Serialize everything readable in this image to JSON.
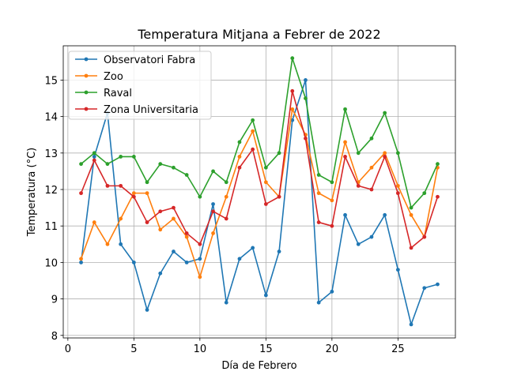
{
  "chart_data": {
    "type": "line",
    "title": "Temperatura Mitjana a Febrer de 2022",
    "xlabel": "Día de Febrero",
    "ylabel": "Temperatura (°C)",
    "xlim": [
      -0.35,
      29.35
    ],
    "ylim": [
      7.93,
      15.94
    ],
    "xticks": [
      0,
      5,
      10,
      15,
      20,
      25
    ],
    "yticks": [
      8,
      9,
      10,
      11,
      12,
      13,
      14,
      15
    ],
    "grid": true,
    "legend_position": "top-left",
    "x": [
      1,
      2,
      3,
      4,
      5,
      6,
      7,
      8,
      9,
      10,
      11,
      12,
      13,
      14,
      15,
      16,
      17,
      18,
      19,
      20,
      21,
      22,
      23,
      24,
      25,
      26,
      27,
      28
    ],
    "series": [
      {
        "name": "Observatori Fabra",
        "color": "#1f77b4",
        "values": [
          10.0,
          12.9,
          14.1,
          10.5,
          10.0,
          8.7,
          9.7,
          10.3,
          10.0,
          10.1,
          11.6,
          8.9,
          10.1,
          10.4,
          9.1,
          10.3,
          13.9,
          15.0,
          8.9,
          9.2,
          11.3,
          10.5,
          10.7,
          11.3,
          9.8,
          8.3,
          9.3,
          9.4
        ]
      },
      {
        "name": "Zoo",
        "color": "#ff7f0e",
        "values": [
          10.1,
          11.1,
          10.5,
          11.2,
          11.9,
          11.9,
          10.9,
          11.2,
          10.7,
          9.6,
          10.8,
          11.8,
          12.9,
          13.6,
          12.2,
          11.8,
          14.2,
          13.5,
          11.9,
          11.7,
          13.3,
          12.2,
          12.6,
          13.0,
          12.1,
          11.3,
          10.7,
          12.6
        ]
      },
      {
        "name": "Raval",
        "color": "#2ca02c",
        "values": [
          12.7,
          13.0,
          12.7,
          12.9,
          12.9,
          12.2,
          12.7,
          12.6,
          12.4,
          11.8,
          12.5,
          12.2,
          13.3,
          13.9,
          12.6,
          13.0,
          15.6,
          14.5,
          12.4,
          12.2,
          14.2,
          13.0,
          13.4,
          14.1,
          13.0,
          11.5,
          11.9,
          12.7
        ]
      },
      {
        "name": "Zona Universitaria",
        "color": "#d62728",
        "values": [
          11.9,
          12.8,
          12.1,
          12.1,
          11.8,
          11.1,
          11.4,
          11.5,
          10.8,
          10.5,
          11.4,
          11.2,
          12.6,
          13.1,
          11.6,
          11.8,
          14.7,
          13.4,
          11.1,
          11.0,
          12.9,
          12.1,
          12.0,
          12.9,
          11.9,
          10.4,
          10.7,
          11.8
        ]
      }
    ]
  }
}
